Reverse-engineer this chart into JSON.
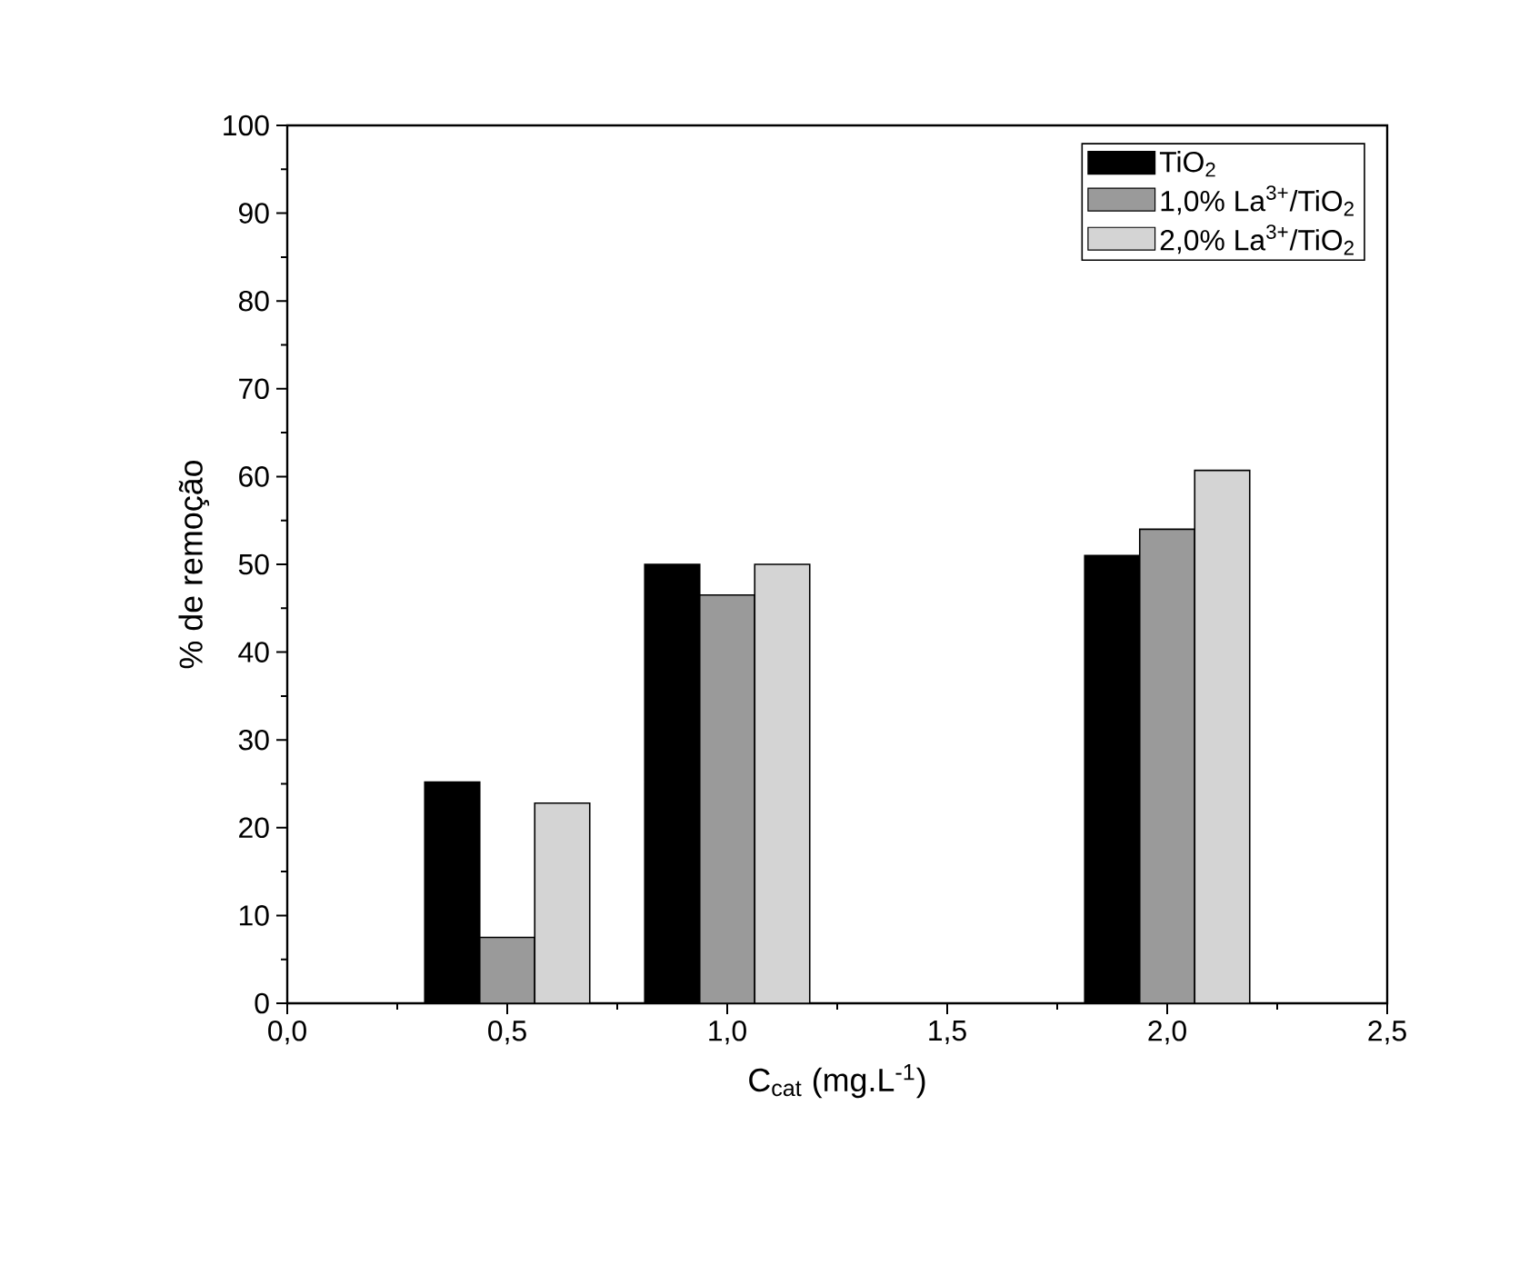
{
  "chart_data": {
    "type": "bar",
    "xlabel": "C$_{cat}$ (mg.L$^{-1}$)",
    "ylabel": "% de remoção",
    "x": [
      0.5,
      1.0,
      2.0
    ],
    "series": [
      {
        "name": "TiO$_{2}$",
        "color": "#000000",
        "values": [
          25.2,
          50.0,
          51.0
        ]
      },
      {
        "name": "1,0% La$^{3+}$/TiO$_{2}$",
        "color": "#9a9a9a",
        "values": [
          7.5,
          46.5,
          54.0
        ]
      },
      {
        "name": "2,0% La$^{3+}$/TiO$_{2}$",
        "color": "#d4d4d4",
        "values": [
          22.8,
          50.0,
          60.7
        ]
      }
    ],
    "xlim": [
      0,
      2.5
    ],
    "xticks": [
      {
        "value": 0,
        "label": "0,0"
      },
      {
        "value": 0.5,
        "label": "0,5"
      },
      {
        "value": 1.0,
        "label": "1,0"
      },
      {
        "value": 1.5,
        "label": "1,5"
      },
      {
        "value": 2.0,
        "label": "2,0"
      },
      {
        "value": 2.5,
        "label": "2,5"
      }
    ],
    "ylim": [
      0,
      100
    ],
    "yticks": [
      0,
      10,
      20,
      30,
      40,
      50,
      60,
      70,
      80,
      90,
      100
    ],
    "legend": "top right",
    "grid": false
  }
}
